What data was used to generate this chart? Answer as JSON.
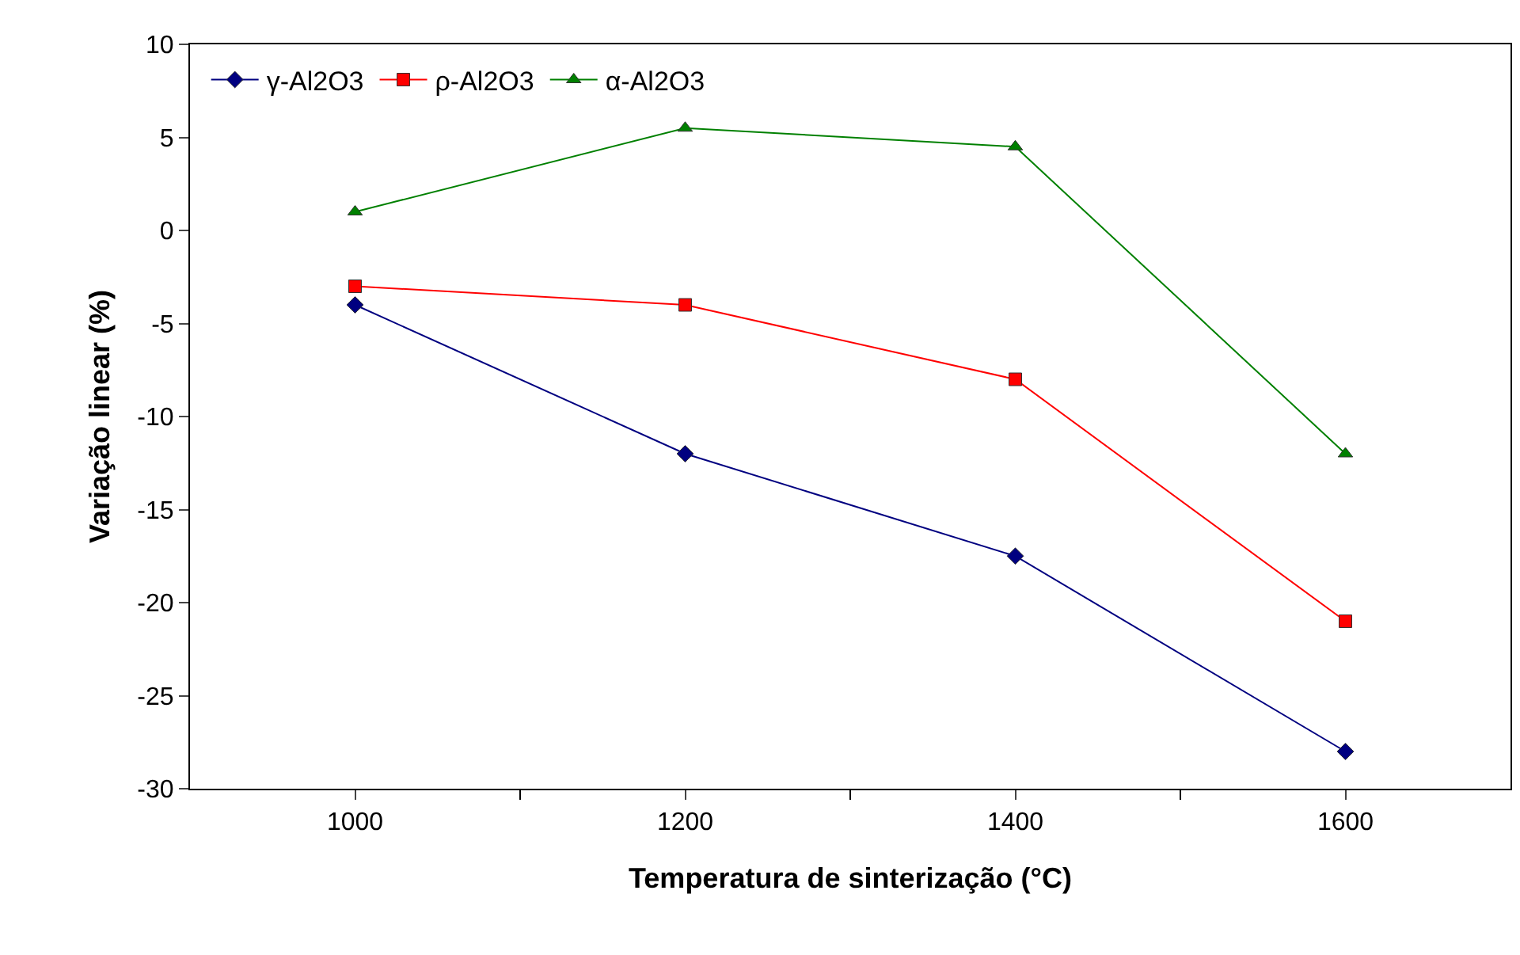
{
  "chart_data": {
    "type": "line",
    "xlabel": "Temperatura de sinterização (°C)",
    "ylabel": "Variação linear (%)",
    "categories": [
      "1000",
      "1200",
      "1400",
      "1600"
    ],
    "series": [
      {
        "name": "γ-Al2O3",
        "color": "#000080",
        "marker": "diamond",
        "values": [
          -4,
          -12,
          -17.5,
          -28
        ]
      },
      {
        "name": "ρ-Al2O3",
        "color": "#ff0000",
        "marker": "square",
        "values": [
          -3,
          -4,
          -8,
          -21
        ]
      },
      {
        "name": "α-Al2O3",
        "color": "#008000",
        "marker": "triangle",
        "values": [
          1,
          5.5,
          4.5,
          -12
        ]
      }
    ],
    "ylim": [
      -30,
      10
    ],
    "yticks": [
      -30,
      -25,
      -20,
      -15,
      -10,
      -5,
      0,
      5,
      10
    ],
    "grid": false,
    "legend": "top left",
    "line_style": "solid"
  }
}
